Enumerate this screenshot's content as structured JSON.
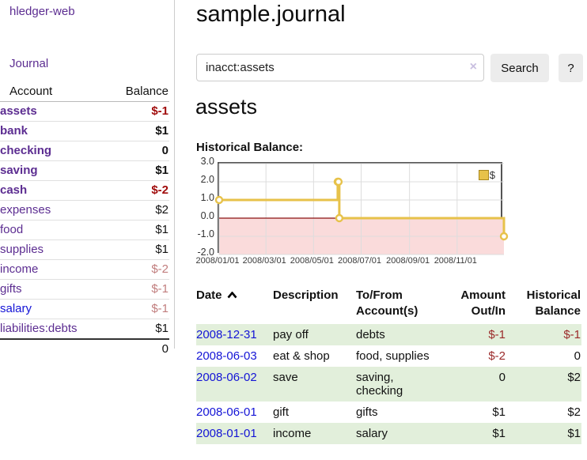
{
  "app": {
    "title": "hledger-web",
    "nav_journal": "Journal"
  },
  "colors": {
    "brand_purple": "#5c2d91",
    "link_blue": "#1414d6",
    "negative_strong": "#a00c0c",
    "negative_light": "#c17d7d",
    "negative_register": "#9b2a2a",
    "row_green": "#e2efdb",
    "chart_gold": "#e7c24a",
    "chart_negative_fill": "#fadbdb",
    "chart_zero_line": "#8b1010"
  },
  "sidebar": {
    "col_account": "Account",
    "col_balance": "Balance",
    "accounts": [
      {
        "name": "assets",
        "balance": "$-1"
      },
      {
        "name": "bank",
        "balance": "$1"
      },
      {
        "name": "checking",
        "balance": "0"
      },
      {
        "name": "saving",
        "balance": "$1"
      },
      {
        "name": "cash",
        "balance": "$-2"
      },
      {
        "name": "expenses",
        "balance": "$2"
      },
      {
        "name": "food",
        "balance": "$1"
      },
      {
        "name": "supplies",
        "balance": "$1"
      },
      {
        "name": "income",
        "balance": "$-2"
      },
      {
        "name": "gifts",
        "balance": "$-1"
      },
      {
        "name": "salary",
        "balance": "$-1"
      },
      {
        "name": "liabilities:debts",
        "balance": "$1"
      }
    ],
    "total": "0"
  },
  "header": {
    "title": "sample.journal"
  },
  "search": {
    "value": "inacct:assets",
    "clear_icon": "×",
    "button_label": "Search",
    "help_label": "?"
  },
  "account_page": {
    "heading": "assets",
    "chart_title": "Historical Balance:"
  },
  "chart_data": {
    "type": "line",
    "style": "step",
    "title": "Historical Balance:",
    "legend": "$",
    "legend_position": "top-right",
    "grid": true,
    "ylim": [
      -2,
      3
    ],
    "xlim_days": [
      0,
      365
    ],
    "y_ticks": [
      3.0,
      2.0,
      1.0,
      0.0,
      -1.0,
      -2.0
    ],
    "x_ticks": [
      {
        "day": 0,
        "label": "2008/01/01"
      },
      {
        "day": 60,
        "label": "2008/03/01"
      },
      {
        "day": 121,
        "label": "2008/05/01"
      },
      {
        "day": 182,
        "label": "2008/07/01"
      },
      {
        "day": 244,
        "label": "2008/09/01"
      },
      {
        "day": 305,
        "label": "2008/11/01"
      }
    ],
    "series": [
      {
        "name": "$",
        "color": "#e7c24a",
        "points": [
          {
            "date": "2008-01-01",
            "day": 0,
            "value": 1
          },
          {
            "date": "2008-06-01",
            "day": 152,
            "value": 2
          },
          {
            "date": "2008-06-02",
            "day": 153,
            "value": 2
          },
          {
            "date": "2008-06-03",
            "day": 154,
            "value": 0
          },
          {
            "date": "2008-12-31",
            "day": 365,
            "value": -1
          }
        ]
      }
    ],
    "negative_fill": "#fadbdb",
    "zero_line_color": "#8b1010"
  },
  "register": {
    "columns": {
      "date": "Date",
      "description": "Description",
      "accounts": "To/From Account(s)",
      "amount": "Amount Out/In",
      "balance": "Historical Balance"
    },
    "sort": "ascending",
    "rows": [
      {
        "date": "2008-12-31",
        "description": "pay off",
        "accounts": "debts",
        "amount": "$-1",
        "balance": "$-1"
      },
      {
        "date": "2008-06-03",
        "description": "eat & shop",
        "accounts": "food, supplies",
        "amount": "$-2",
        "balance": "0"
      },
      {
        "date": "2008-06-02",
        "description": "save",
        "accounts": "saving, checking",
        "amount": "0",
        "balance": "$2"
      },
      {
        "date": "2008-06-01",
        "description": "gift",
        "accounts": "gifts",
        "amount": "$1",
        "balance": "$2"
      },
      {
        "date": "2008-01-01",
        "description": "income",
        "accounts": "salary",
        "amount": "$1",
        "balance": "$1"
      }
    ]
  }
}
